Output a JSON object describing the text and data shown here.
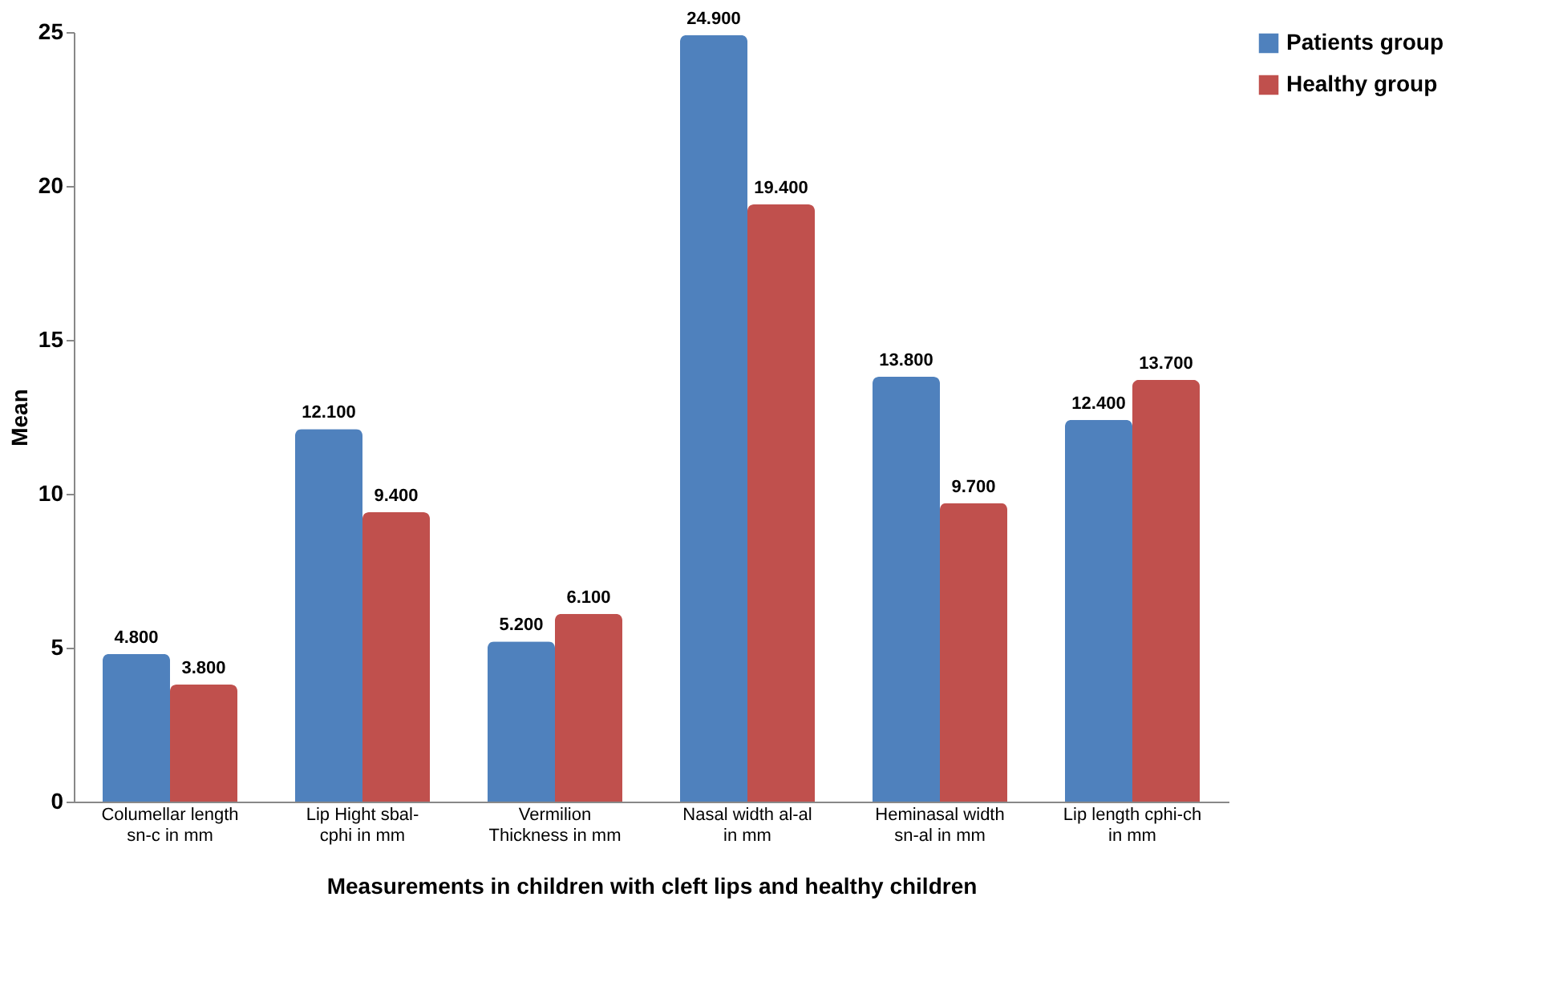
{
  "chart_data": {
    "type": "bar",
    "xlabel": "Measurements in children with cleft lips and healthy children",
    "ylabel": "Mean",
    "categories": [
      "Columellar length sn-c in mm",
      "Lip Hight sbal-cphi in mm",
      "Vermilion Thickness in mm",
      "Nasal width al-al in mm",
      "Heminasal width sn-al in mm",
      "Lip length cphi-ch in mm"
    ],
    "series": [
      {
        "name": "Patients group",
        "color": "#4f81bd",
        "values": [
          4.8,
          12.1,
          5.2,
          24.9,
          13.8,
          12.4
        ],
        "value_labels": [
          "4.800",
          "12.100",
          "5.200",
          "24.900",
          "13.800",
          "12.400"
        ]
      },
      {
        "name": "Healthy group",
        "color": "#c0504d",
        "values": [
          3.8,
          9.4,
          6.1,
          19.4,
          9.7,
          13.7
        ],
        "value_labels": [
          "3.800",
          "9.400",
          "6.100",
          "19.400",
          "9.700",
          "13.700"
        ]
      }
    ],
    "ylim": [
      0,
      25
    ],
    "yticks": [
      0,
      5,
      10,
      15,
      20,
      25
    ],
    "grid": false,
    "legend": "right"
  }
}
